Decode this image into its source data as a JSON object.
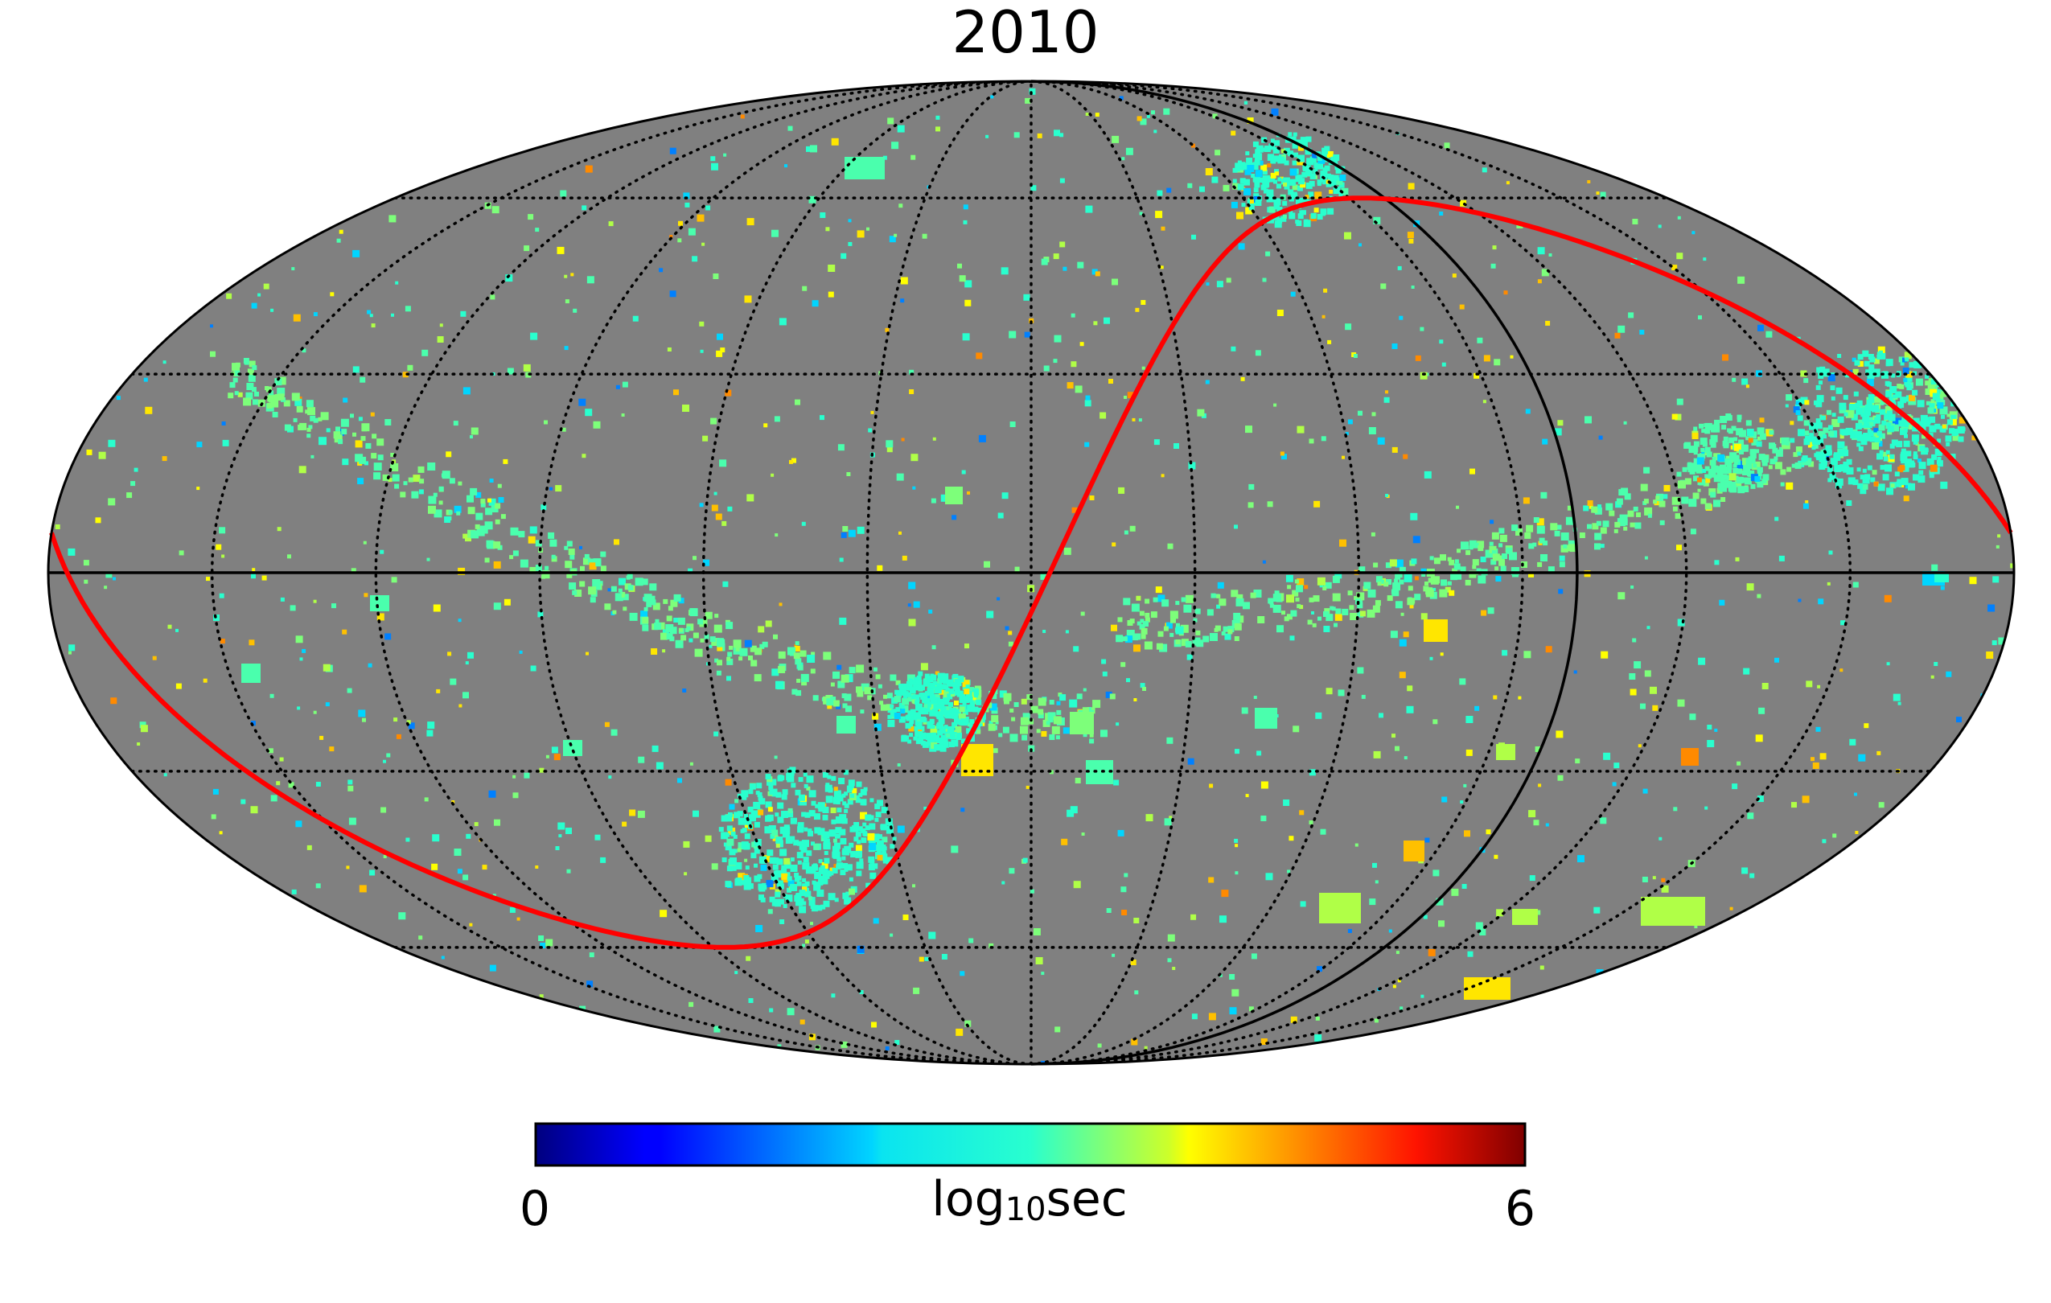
{
  "title": "2010",
  "map": {
    "projection": "Mollweide",
    "background_color": "#808080",
    "meridian_step_deg": 30,
    "parallel_step_deg": 30,
    "equator": "solid",
    "graticule": "dotted",
    "overlays": [
      {
        "name": "ecliptic",
        "color": "#ff0000"
      },
      {
        "name": "great-circle",
        "color": "#000000"
      }
    ]
  },
  "colorbar": {
    "colormap": "jet",
    "min_label": "0",
    "max_label": "6",
    "min": 0,
    "max": 6,
    "unit_base": "log",
    "unit_sub": "10",
    "unit_tail": "sec"
  }
}
